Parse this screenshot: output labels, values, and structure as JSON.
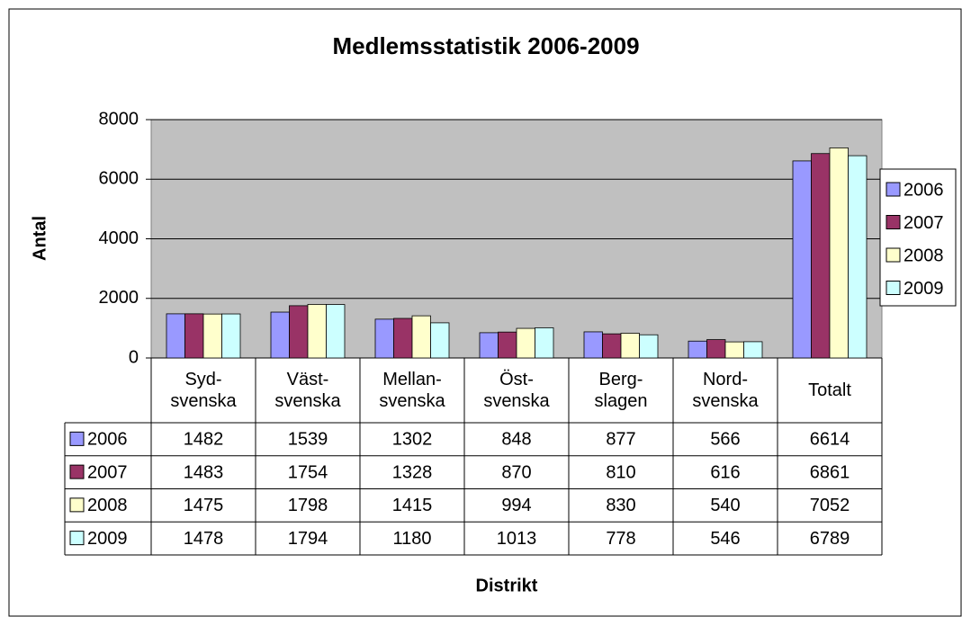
{
  "chart_data": {
    "type": "bar",
    "title": "Medlemsstatistik 2006-2009",
    "y_label": "Antal",
    "x_label": "Distrikt",
    "categories": [
      "Syd-\nsvenska",
      "Väst-\nsvenska",
      "Mellan-\nsvenska",
      "Öst-\nsvenska",
      "Berg-\nslagen",
      "Nord-\nsvenska",
      "Totalt"
    ],
    "series": [
      {
        "name": "2006",
        "color": "#9999ff",
        "values": [
          1482,
          1539,
          1302,
          848,
          877,
          566,
          6614
        ]
      },
      {
        "name": "2007",
        "color": "#993366",
        "values": [
          1483,
          1754,
          1328,
          870,
          810,
          616,
          6861
        ]
      },
      {
        "name": "2008",
        "color": "#ffffcc",
        "values": [
          1475,
          1798,
          1415,
          994,
          830,
          540,
          7052
        ]
      },
      {
        "name": "2009",
        "color": "#ccffff",
        "values": [
          1478,
          1794,
          1180,
          1013,
          778,
          546,
          6789
        ]
      }
    ],
    "ylim": [
      0,
      8000
    ],
    "yticks": [
      0,
      2000,
      4000,
      6000,
      8000
    ],
    "grid": true,
    "legend": "right",
    "plot_background": "#c0c0c0"
  }
}
